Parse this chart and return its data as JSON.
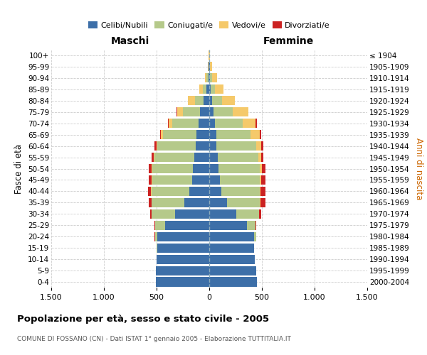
{
  "age_groups": [
    "0-4",
    "5-9",
    "10-14",
    "15-19",
    "20-24",
    "25-29",
    "30-34",
    "35-39",
    "40-44",
    "45-49",
    "50-54",
    "55-59",
    "60-64",
    "65-69",
    "70-74",
    "75-79",
    "80-84",
    "85-89",
    "90-94",
    "95-99",
    "100+"
  ],
  "birth_years": [
    "2000-2004",
    "1995-1999",
    "1990-1994",
    "1985-1989",
    "1980-1984",
    "1975-1979",
    "1970-1974",
    "1965-1969",
    "1960-1964",
    "1955-1959",
    "1950-1954",
    "1945-1949",
    "1940-1944",
    "1935-1939",
    "1930-1934",
    "1925-1929",
    "1920-1924",
    "1915-1919",
    "1910-1914",
    "1905-1909",
    "≤ 1904"
  ],
  "colors": {
    "celibe": "#3d6fa8",
    "coniugato": "#b5c98a",
    "vedovo": "#f5c96a",
    "divorziato": "#cc2222"
  },
  "maschi": {
    "celibe": [
      510,
      510,
      500,
      490,
      490,
      420,
      325,
      235,
      190,
      165,
      155,
      145,
      130,
      120,
      100,
      85,
      55,
      25,
      10,
      5,
      3
    ],
    "coniugato": [
      0,
      0,
      0,
      8,
      25,
      95,
      220,
      310,
      360,
      375,
      385,
      375,
      360,
      320,
      250,
      165,
      80,
      35,
      15,
      5,
      0
    ],
    "vedovo": [
      0,
      0,
      0,
      0,
      0,
      0,
      1,
      1,
      2,
      4,
      6,
      8,
      13,
      18,
      38,
      55,
      65,
      35,
      15,
      5,
      2
    ],
    "divorziato": [
      0,
      0,
      0,
      0,
      2,
      5,
      14,
      30,
      28,
      30,
      25,
      20,
      15,
      10,
      5,
      5,
      0,
      0,
      0,
      0,
      0
    ]
  },
  "femmine": {
    "nubile": [
      455,
      445,
      435,
      425,
      425,
      355,
      255,
      168,
      118,
      98,
      88,
      78,
      70,
      65,
      52,
      40,
      25,
      12,
      8,
      4,
      2
    ],
    "coniugata": [
      0,
      0,
      0,
      4,
      18,
      85,
      215,
      315,
      365,
      385,
      395,
      385,
      375,
      330,
      265,
      185,
      95,
      45,
      18,
      4,
      0
    ],
    "vedova": [
      0,
      0,
      0,
      0,
      0,
      1,
      2,
      4,
      6,
      10,
      18,
      28,
      48,
      88,
      125,
      145,
      125,
      80,
      50,
      20,
      5
    ],
    "divorziata": [
      0,
      0,
      0,
      0,
      1,
      6,
      18,
      48,
      48,
      38,
      32,
      22,
      18,
      13,
      8,
      4,
      0,
      0,
      0,
      0,
      0
    ]
  },
  "xlim": 1500,
  "title": "Popolazione per età, sesso e stato civile - 2005",
  "subtitle": "COMUNE DI FOSSANO (CN) - Dati ISTAT 1° gennaio 2005 - Elaborazione TUTTITALIA.IT",
  "xlabel_left": "Maschi",
  "xlabel_right": "Femmine",
  "ylabel_left": "Fasce di età",
  "ylabel_right": "Anni di nascita",
  "legend_labels": [
    "Celibi/Nubili",
    "Coniugati/e",
    "Vedovi/e",
    "Divorziati/e"
  ],
  "background_color": "#ffffff",
  "grid_color": "#cccccc"
}
